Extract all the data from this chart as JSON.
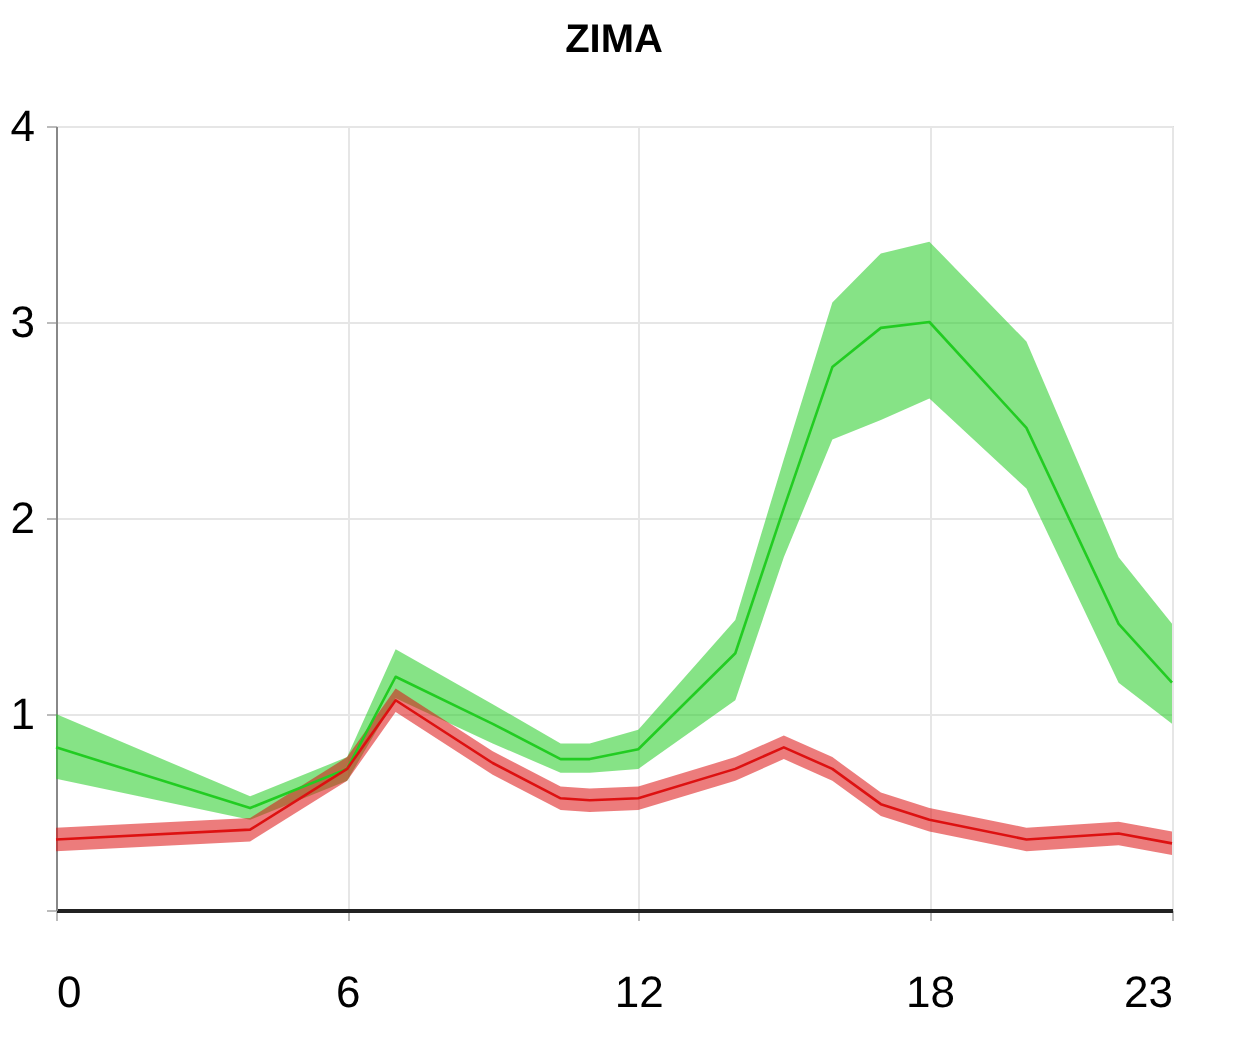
{
  "chart_data": {
    "type": "line",
    "title": "ZIMA",
    "x": [
      0,
      4,
      6,
      7,
      9,
      10.4,
      11,
      12,
      14,
      15,
      16,
      17,
      18,
      20,
      21.9,
      23
    ],
    "series": [
      {
        "color": "#22cc22",
        "values": [
          0.83,
          0.52,
          0.72,
          1.19,
          0.95,
          0.77,
          0.77,
          0.82,
          1.31,
          2.05,
          2.77,
          2.97,
          3.0,
          2.46,
          1.46,
          1.16
        ],
        "lower": [
          0.67,
          0.46,
          0.66,
          1.08,
          0.85,
          0.7,
          0.7,
          0.72,
          1.07,
          1.8,
          2.4,
          2.5,
          2.61,
          2.15,
          1.16,
          0.95
        ],
        "upper": [
          1.0,
          0.58,
          0.78,
          1.33,
          1.05,
          0.85,
          0.85,
          0.92,
          1.48,
          2.3,
          3.1,
          3.35,
          3.41,
          2.9,
          1.8,
          1.46
        ]
      },
      {
        "color": "#dd1111",
        "values": [
          0.36,
          0.41,
          0.72,
          1.07,
          0.75,
          0.57,
          0.56,
          0.57,
          0.72,
          0.83,
          0.72,
          0.54,
          0.46,
          0.36,
          0.39,
          0.34
        ],
        "lower": [
          0.3,
          0.35,
          0.66,
          1.01,
          0.69,
          0.51,
          0.5,
          0.51,
          0.66,
          0.77,
          0.66,
          0.48,
          0.4,
          0.3,
          0.33,
          0.28
        ],
        "upper": [
          0.42,
          0.47,
          0.78,
          1.13,
          0.81,
          0.63,
          0.62,
          0.63,
          0.78,
          0.89,
          0.78,
          0.6,
          0.52,
          0.42,
          0.45,
          0.4
        ]
      }
    ],
    "xlim": [
      0,
      23
    ],
    "xticks": [
      0,
      6,
      12,
      18,
      23
    ],
    "ylim": [
      0,
      4
    ],
    "yticks": [
      {
        "value": 0,
        "label": null
      },
      1,
      2,
      3,
      4
    ],
    "grid": true,
    "marker": "none",
    "line_style": "solid"
  }
}
